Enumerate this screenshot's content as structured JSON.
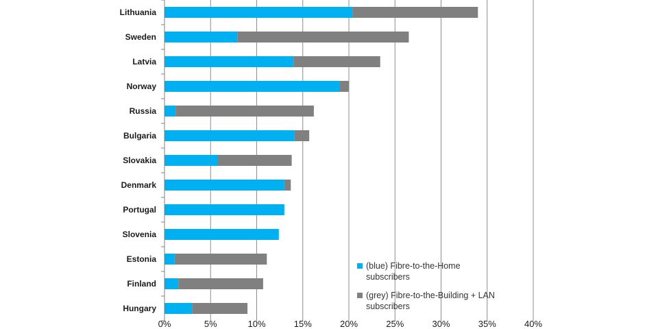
{
  "chart_data": {
    "type": "bar",
    "orientation": "horizontal",
    "stacked": true,
    "categories": [
      "Lithuania",
      "Sweden",
      "Latvia",
      "Norway",
      "Russia",
      "Bulgaria",
      "Slovakia",
      "Denmark",
      "Portugal",
      "Slovenia",
      "Estonia",
      "Finland",
      "Hungary"
    ],
    "series": [
      {
        "name_lines": [
          "(blue) Fibre-to-the-Home",
          "subscribers"
        ],
        "color": "#00B0F0",
        "values": [
          20.4,
          7.9,
          14.0,
          19.0,
          1.2,
          14.1,
          5.8,
          13.0,
          13.0,
          12.4,
          1.1,
          1.5,
          3.0
        ]
      },
      {
        "name_lines": [
          "(grey) Fibre-to-the-Building + LAN",
          "subscribers"
        ],
        "color": "#808080",
        "values": [
          13.6,
          18.6,
          9.4,
          1.0,
          15.0,
          1.6,
          8.0,
          0.7,
          0.0,
          0.0,
          10.0,
          9.2,
          6.0
        ]
      }
    ],
    "xlim": [
      0,
      40
    ],
    "xticks": [
      0,
      5,
      10,
      15,
      20,
      25,
      30,
      35,
      40
    ],
    "tick_labels": [
      "0%",
      "5%",
      "10%",
      "15%",
      "20%",
      "25%",
      "30%",
      "35%",
      "40%"
    ],
    "grid": "vertical",
    "legend_position": "bottom-right"
  }
}
